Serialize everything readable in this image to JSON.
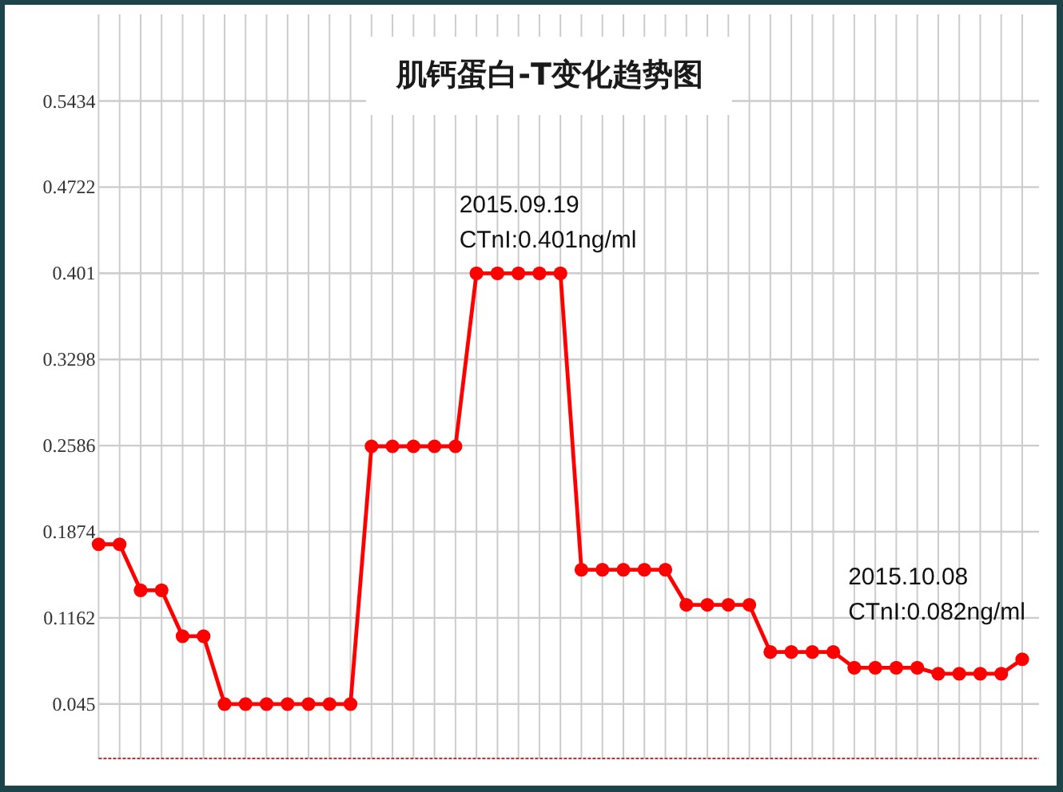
{
  "chart_data": {
    "type": "line",
    "title": "肌钙蛋白-T变化趋势图",
    "annotations": [
      {
        "text": "2015.09.19\nCTnI:0.401ng/ml",
        "y": 0.401
      },
      {
        "text": "2015.10.08\nCTnI:0.082ng/ml",
        "y": 0.082
      }
    ],
    "categories": [
      null,
      null,
      null,
      null,
      null,
      null,
      null,
      null,
      null,
      null,
      null,
      null,
      null,
      null,
      null,
      null,
      null,
      null,
      null,
      null,
      null,
      null,
      null,
      null,
      null,
      null,
      null,
      null,
      null,
      null,
      null,
      null,
      null,
      null,
      null,
      null,
      null,
      null,
      null,
      null,
      null,
      null,
      null,
      null,
      null
    ],
    "values": [
      0.177,
      0.177,
      0.139,
      0.139,
      0.101,
      0.101,
      0.045,
      0.045,
      0.045,
      0.045,
      0.045,
      0.045,
      0.045,
      0.258,
      0.258,
      0.258,
      0.258,
      0.258,
      0.401,
      0.401,
      0.401,
      0.401,
      0.401,
      0.156,
      0.156,
      0.156,
      0.156,
      0.156,
      0.127,
      0.127,
      0.127,
      0.127,
      0.088,
      0.088,
      0.088,
      0.088,
      0.075,
      0.075,
      0.075,
      0.075,
      0.07,
      0.07,
      0.07,
      0.07,
      0.082
    ],
    "color": "#ff0000",
    "marker": "circle",
    "line_style": "solid",
    "ylim": [
      0,
      0.615
    ],
    "yticks": [
      0.045,
      0.1162,
      0.1874,
      0.2586,
      0.3298,
      0.401,
      0.4722,
      0.5434
    ],
    "grid": true,
    "tick_labels": "y"
  }
}
